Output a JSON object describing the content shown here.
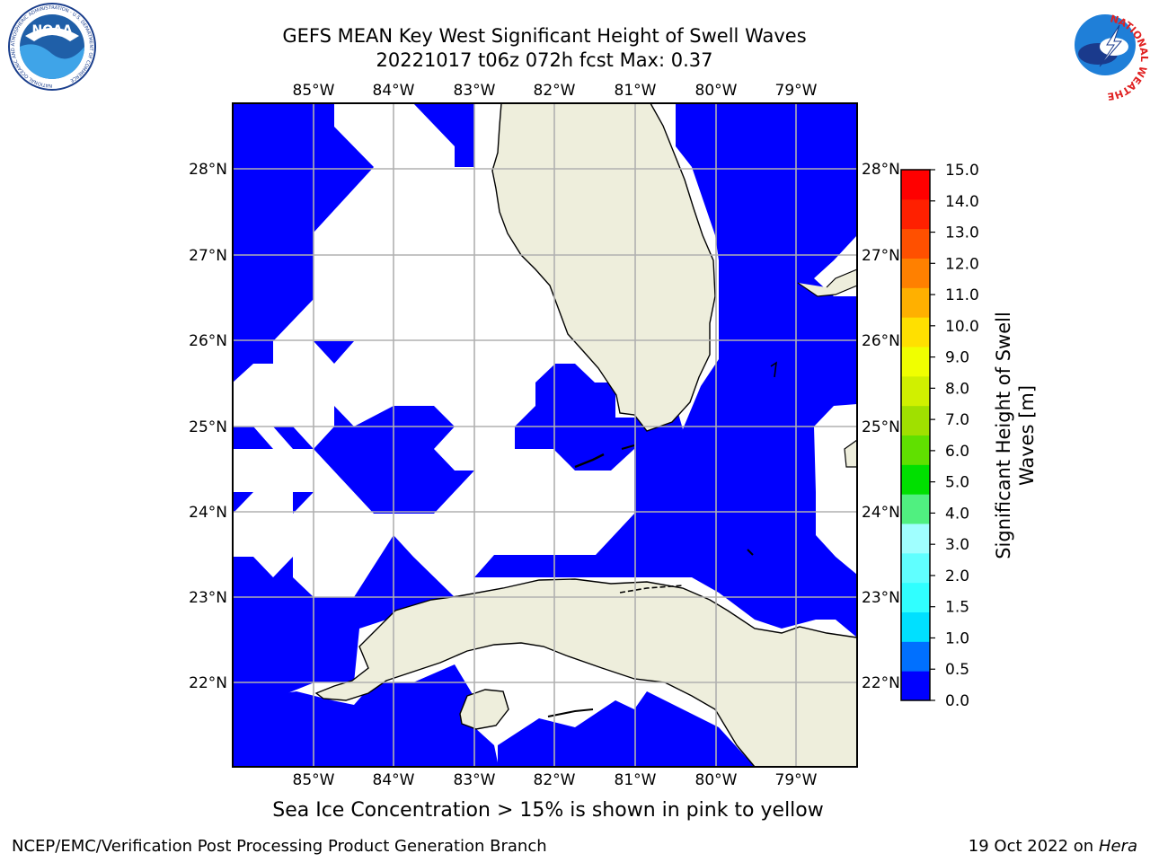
{
  "title": {
    "line1": "GEFS MEAN Key West Significant Height of Swell Waves",
    "line2": "20221017 t06z 072h fcst   Max: 0.37"
  },
  "map": {
    "lon_ticks": [
      "85°W",
      "84°W",
      "83°W",
      "82°W",
      "81°W",
      "80°W",
      "79°W"
    ],
    "lat_ticks": [
      "28°N",
      "27°N",
      "26°N",
      "25°N",
      "24°N",
      "23°N",
      "22°N"
    ],
    "extent": {
      "lon": [
        -86.0,
        -78.3
      ],
      "lat": [
        21.0,
        28.8
      ]
    },
    "field_color": "#0000ff",
    "land_color": "#eeeedc",
    "grid_color": "#b0b0b0"
  },
  "colorbar": {
    "title_line1": "Significant Height of Swell",
    "title_line2": "Waves [m]",
    "labels": [
      "0.0",
      "0.5",
      "1.0",
      "1.5",
      "2.0",
      "3.0",
      "4.0",
      "5.0",
      "6.0",
      "7.0",
      "8.0",
      "9.0",
      "10.0",
      "11.0",
      "12.0",
      "13.0",
      "14.0",
      "15.0"
    ],
    "colors": [
      "#0000ff",
      "#0070ff",
      "#00e0ff",
      "#30ffff",
      "#60ffff",
      "#a0ffff",
      "#50f080",
      "#00e000",
      "#60e000",
      "#a0e000",
      "#d0f000",
      "#f0ff00",
      "#ffe000",
      "#ffb000",
      "#ff8000",
      "#ff5000",
      "#ff2000",
      "#ff0000"
    ]
  },
  "note": "Sea Ice Concentration > 15% is shown in pink to yellow",
  "footer": {
    "left": "NCEP/EMC/Verification Post Processing Product Generation Branch",
    "right_prefix": "19 Oct 2022 on ",
    "right_host": "Hera"
  },
  "logos": {
    "left": {
      "name": "NOAA",
      "ring_text": "NATIONAL OCEANIC AND ATMOSPHERIC ADMINISTRATION · U.S. DEPARTMENT OF COMMERCE"
    },
    "right": {
      "ring_text": "NATIONAL WEATHER SERVICE"
    }
  }
}
